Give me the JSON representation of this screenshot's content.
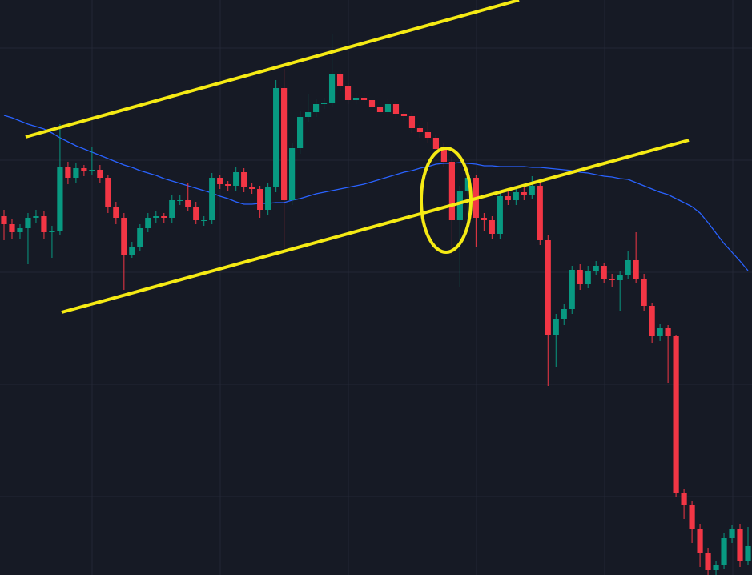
{
  "chart_data": {
    "type": "candlestick",
    "up_color": "#089981",
    "down_color": "#f23645",
    "ylim": [
      0,
      718
    ],
    "open": [
      448,
      438,
      428,
      433,
      446,
      448,
      428,
      430,
      510,
      496,
      508,
      505,
      506,
      496,
      460,
      446,
      400,
      410,
      433,
      446,
      448,
      446,
      468,
      468,
      460,
      443,
      443,
      496,
      488,
      486,
      503,
      485,
      482,
      456,
      484,
      608,
      468,
      533,
      572,
      578,
      588,
      590,
      625,
      610,
      593,
      596,
      593,
      585,
      578,
      588,
      576,
      573,
      558,
      553,
      546,
      532,
      516,
      443,
      480,
      496,
      446,
      443,
      426,
      473,
      468,
      478,
      475,
      486,
      418,
      300,
      320,
      332,
      381,
      363,
      380,
      386,
      370,
      368,
      375,
      393,
      370,
      336,
      298,
      308,
      298,
      103,
      88,
      58,
      28,
      6,
      13,
      46,
      58,
      18
    ],
    "high": [
      456,
      444,
      438,
      452,
      456,
      454,
      436,
      563,
      516,
      514,
      512,
      535,
      512,
      500,
      466,
      452,
      416,
      438,
      452,
      454,
      452,
      474,
      474,
      490,
      466,
      448,
      502,
      500,
      492,
      510,
      508,
      490,
      486,
      490,
      618,
      632,
      540,
      580,
      600,
      594,
      596,
      676,
      630,
      614,
      602,
      600,
      598,
      590,
      594,
      592,
      580,
      578,
      562,
      566,
      550,
      540,
      522,
      486,
      500,
      500,
      452,
      448,
      478,
      482,
      484,
      484,
      498,
      490,
      424,
      326,
      338,
      386,
      388,
      386,
      392,
      390,
      376,
      380,
      405,
      428,
      376,
      340,
      314,
      312,
      300,
      108,
      92,
      64,
      34,
      18,
      52,
      62,
      64,
      60
    ],
    "low": [
      418,
      420,
      420,
      388,
      440,
      420,
      396,
      424,
      488,
      490,
      498,
      500,
      490,
      452,
      438,
      356,
      396,
      404,
      428,
      440,
      440,
      440,
      462,
      454,
      438,
      436,
      438,
      482,
      480,
      480,
      478,
      476,
      446,
      450,
      478,
      408,
      462,
      526,
      566,
      572,
      582,
      584,
      604,
      588,
      588,
      588,
      580,
      572,
      572,
      570,
      568,
      552,
      546,
      540,
      526,
      510,
      400,
      360,
      430,
      410,
      430,
      420,
      420,
      462,
      462,
      468,
      470,
      412,
      236,
      260,
      312,
      326,
      356,
      358,
      374,
      364,
      360,
      330,
      370,
      364,
      330,
      290,
      292,
      240,
      98,
      70,
      40,
      10,
      0,
      0,
      8,
      40,
      10,
      12
    ],
    "close": [
      438,
      428,
      433,
      446,
      448,
      428,
      430,
      510,
      496,
      508,
      505,
      506,
      496,
      460,
      446,
      400,
      410,
      433,
      446,
      448,
      446,
      468,
      468,
      460,
      443,
      443,
      496,
      488,
      486,
      503,
      485,
      482,
      456,
      484,
      608,
      468,
      533,
      572,
      578,
      588,
      590,
      625,
      610,
      593,
      596,
      593,
      585,
      578,
      588,
      576,
      573,
      558,
      553,
      546,
      532,
      516,
      443,
      480,
      496,
      446,
      443,
      426,
      473,
      468,
      478,
      475,
      486,
      418,
      300,
      320,
      332,
      381,
      363,
      380,
      386,
      370,
      368,
      375,
      393,
      370,
      336,
      298,
      308,
      298,
      103,
      88,
      58,
      28,
      6,
      13,
      46,
      58,
      18,
      36
    ],
    "series": [
      {
        "color": "#2962ff",
        "values": [
          574,
          571,
          567,
          563,
          560,
          557,
          552,
          546,
          541,
          536,
          532,
          528,
          524,
          520,
          516,
          512,
          509,
          505,
          502,
          499,
          495,
          492,
          489,
          486,
          483,
          480,
          477,
          473,
          470,
          466,
          463,
          463,
          464,
          464,
          465,
          465,
          468,
          470,
          473,
          476,
          478,
          480,
          482,
          484,
          486,
          488,
          491,
          494,
          497,
          500,
          503,
          505,
          508,
          510,
          513,
          514,
          514,
          515,
          514,
          513,
          511,
          511,
          510,
          510,
          510,
          510,
          509,
          509,
          508,
          507,
          506,
          505,
          503,
          502,
          500,
          498,
          497,
          495,
          494,
          490,
          486,
          482,
          478,
          475,
          470,
          465,
          460,
          452,
          440,
          427,
          414,
          403,
          392,
          380
        ]
      }
    ]
  }
}
